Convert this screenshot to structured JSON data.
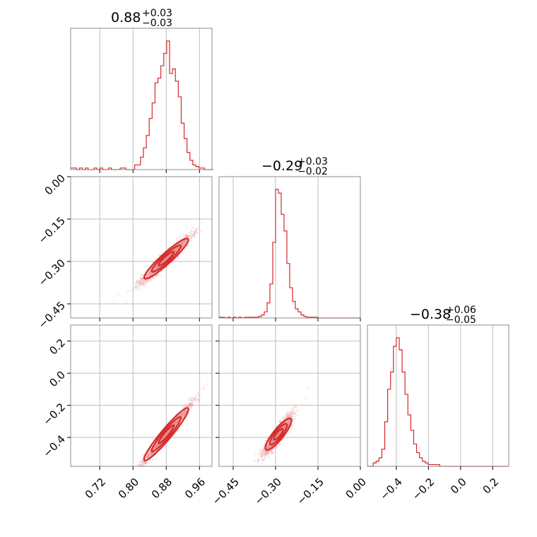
{
  "chart_data": {
    "type": "corner",
    "color": "#d62728",
    "parameters": [
      {
        "id": "p0",
        "median": 0.88,
        "sd": 0.03,
        "title_main": "0.88",
        "title_plus": "+0.03",
        "title_minus": "−0.03",
        "range": [
          0.65,
          0.99
        ],
        "ticks": [
          0.72,
          0.8,
          0.88,
          0.96
        ],
        "tick_labels": [
          "0.72",
          "0.80",
          "0.88",
          "0.96"
        ]
      },
      {
        "id": "p1",
        "median": -0.29,
        "sd": 0.025,
        "title_main": "−0.29",
        "title_plus": "+0.03",
        "title_minus": "−0.02",
        "range": [
          -0.5,
          0.0
        ],
        "ticks": [
          -0.45,
          -0.3,
          -0.15,
          0.0
        ],
        "tick_labels": [
          "−0.45",
          "−0.30",
          "−0.15",
          "0.00"
        ]
      },
      {
        "id": "p2",
        "median": -0.38,
        "sd": 0.055,
        "title_main": "−0.38",
        "title_plus": "+0.06",
        "title_minus": "−0.05",
        "range": [
          -0.58,
          0.3
        ],
        "ticks": [
          -0.4,
          -0.2,
          0.0,
          0.2
        ],
        "tick_labels": [
          "−0.4",
          "−0.2",
          "0.0",
          "0.2"
        ]
      }
    ],
    "histograms": [
      {
        "param": 0,
        "bins": [
          0.65,
          0.657,
          0.664,
          0.671,
          0.678,
          0.685,
          0.692,
          0.699,
          0.706,
          0.713,
          0.72,
          0.727,
          0.734,
          0.741,
          0.748,
          0.755,
          0.762,
          0.769,
          0.776,
          0.783,
          0.79,
          0.797,
          0.804,
          0.811,
          0.818,
          0.825,
          0.832,
          0.839,
          0.846,
          0.853,
          0.86,
          0.867,
          0.874,
          0.881,
          0.888,
          0.895,
          0.902,
          0.909,
          0.916,
          0.923,
          0.93,
          0.937,
          0.944,
          0.951,
          0.958,
          0.965,
          0.972,
          0.979,
          0.986,
          0.993
        ],
        "counts": [
          1,
          1,
          0,
          1,
          0,
          1,
          0,
          0,
          1,
          0,
          1,
          0,
          0,
          1,
          0,
          0,
          0,
          1,
          1,
          0,
          0,
          0,
          3,
          3,
          8,
          14,
          22,
          33,
          43,
          56,
          59,
          67,
          75,
          83,
          62,
          65,
          57,
          47,
          30,
          20,
          11,
          6,
          3,
          2,
          1,
          1,
          0,
          0,
          0
        ]
      },
      {
        "param": 1,
        "bins": [
          -0.5,
          -0.49,
          -0.48,
          -0.47,
          -0.46,
          -0.45,
          -0.44,
          -0.43,
          -0.42,
          -0.41,
          -0.4,
          -0.39,
          -0.38,
          -0.37,
          -0.36,
          -0.35,
          -0.34,
          -0.33,
          -0.32,
          -0.31,
          -0.3,
          -0.29,
          -0.28,
          -0.27,
          -0.26,
          -0.25,
          -0.24,
          -0.23,
          -0.22,
          -0.21,
          -0.2,
          -0.19,
          -0.18,
          -0.17,
          -0.16,
          -0.15,
          -0.14,
          -0.13,
          -0.12,
          -0.11,
          -0.1,
          -0.09,
          -0.08,
          -0.07,
          -0.06,
          -0.05,
          -0.04,
          -0.03,
          -0.02,
          -0.01,
          0.0
        ],
        "counts": [
          1,
          1,
          0,
          1,
          0,
          1,
          0,
          1,
          0,
          1,
          1,
          1,
          1,
          1,
          2,
          4,
          8,
          20,
          45,
          100,
          170,
          165,
          137,
          115,
          72,
          40,
          22,
          12,
          8,
          4,
          2,
          1,
          1,
          1,
          1,
          0,
          0,
          0,
          0,
          0,
          0,
          0,
          0,
          0,
          0,
          0,
          0,
          0,
          0,
          0
        ]
      },
      {
        "param": 2,
        "bins": [
          -0.58,
          -0.562,
          -0.544,
          -0.526,
          -0.508,
          -0.49,
          -0.472,
          -0.454,
          -0.436,
          -0.418,
          -0.4,
          -0.382,
          -0.364,
          -0.346,
          -0.328,
          -0.31,
          -0.292,
          -0.274,
          -0.256,
          -0.238,
          -0.22,
          -0.202,
          -0.184,
          -0.166,
          -0.148,
          -0.13,
          -0.112,
          -0.094,
          -0.076,
          -0.058,
          -0.04,
          -0.022,
          -0.004,
          0.014,
          0.032,
          0.05,
          0.068,
          0.086,
          0.104,
          0.122,
          0.14,
          0.158,
          0.176,
          0.194,
          0.212,
          0.23,
          0.248,
          0.266,
          0.284,
          0.3
        ],
        "counts": [
          0,
          0,
          2,
          3,
          5,
          10,
          26,
          45,
          55,
          70,
          75,
          68,
          55,
          42,
          30,
          21,
          13,
          8,
          5,
          3,
          2,
          1,
          1,
          1,
          1,
          0,
          0,
          0,
          0,
          0,
          0,
          0,
          0,
          0,
          0,
          0,
          0,
          0,
          0,
          0,
          0,
          0,
          0,
          0,
          0,
          0,
          0,
          0,
          0
        ]
      }
    ],
    "scatter_panels": [
      {
        "x": 0,
        "y": 1,
        "samples": 2000,
        "slope": 1.33,
        "scatter_sd": 0.012
      },
      {
        "x": 0,
        "y": 2,
        "samples": 2000,
        "slope": 3.1,
        "scatter_sd": 0.018
      },
      {
        "x": 1,
        "y": 2,
        "samples": 2000,
        "slope": 2.2,
        "scatter_sd": 0.025
      }
    ],
    "contour_levels": [
      0.39,
      0.86,
      0.99
    ],
    "grid": true
  }
}
